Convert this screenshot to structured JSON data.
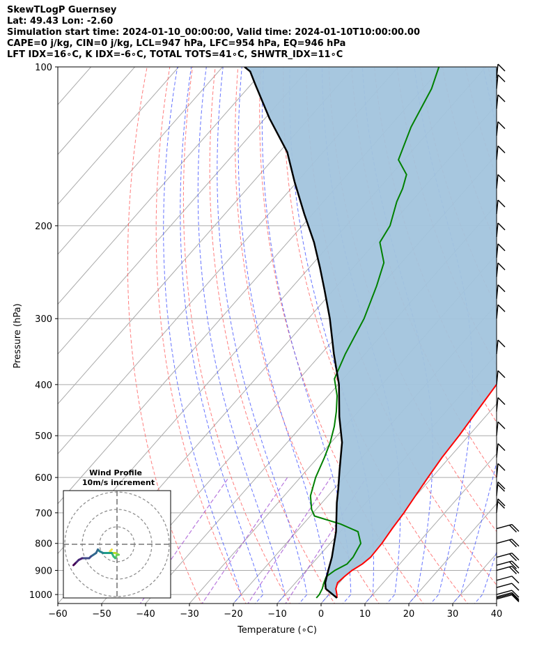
{
  "header": {
    "title": "SkewTLogP Guernsey",
    "location": "Lat: 49.43   Lon: -2.60",
    "times": "Simulation start time: 2024-01-10_00:00:00, Valid time: 2024-01-10T10:00:00.00",
    "indices_1": "CAPE=0 j/kg, CIN=0 j/kg, LCL=947 hPa, LFC=954 hPa, EQ=946 hPa",
    "indices_2": "LFT IDX=16∘C, K IDX=-6∘C, TOTAL TOTS=41∘C, SHWTR_IDX=11∘C"
  },
  "chart_data": {
    "type": "line",
    "subtype": "skew-t log-p",
    "xlabel": "Temperature (∘C)",
    "ylabel": "Pressure (hPa)",
    "xlim": [
      -60,
      40
    ],
    "ylim": [
      1040,
      100
    ],
    "yscale": "log",
    "x_ticks": [
      -60,
      -50,
      -40,
      -30,
      -20,
      -10,
      0,
      10,
      20,
      30,
      40
    ],
    "x_tick_labels": [
      "−60",
      "−50",
      "−40",
      "−30",
      "−20",
      "−10",
      "0",
      "10",
      "20",
      "30",
      "40"
    ],
    "y_ticks": [
      1000,
      900,
      800,
      700,
      600,
      500,
      400,
      300,
      200,
      100
    ],
    "y_tick_labels": [
      "1000",
      "900",
      "800",
      "700",
      "600",
      "500",
      "400",
      "300",
      "200",
      "100"
    ],
    "grid": true,
    "colors": {
      "temperature": "#ff0000",
      "dewpoint": "#008000",
      "parcel": "#000000",
      "cape_fill": "#a2c4dd",
      "dry_adiabats": "#ff6666",
      "moist_adiabats": "#4a5bff",
      "mixing_ratio": "#9a3fcf",
      "isotherms": "#aaaaaa"
    },
    "series": [
      {
        "key": "temperature",
        "points": [
          [
            2.5,
            1015
          ],
          [
            1.8,
            1000
          ],
          [
            0.4,
            975
          ],
          [
            -0.4,
            950
          ],
          [
            -0.1,
            925
          ],
          [
            0.4,
            900
          ],
          [
            1.5,
            875
          ],
          [
            2.0,
            850
          ],
          [
            1.8,
            800
          ],
          [
            1.2,
            750
          ],
          [
            0.7,
            700
          ],
          [
            -0.1,
            650
          ],
          [
            -0.9,
            600
          ],
          [
            -1.7,
            550
          ],
          [
            -2.2,
            500
          ],
          [
            -3.0,
            450
          ],
          [
            -3.9,
            400
          ],
          [
            -4.7,
            350
          ],
          [
            -7.4,
            300
          ],
          [
            -10.6,
            265
          ],
          [
            -15.3,
            240
          ],
          [
            -20.2,
            215
          ],
          [
            -24.7,
            195
          ],
          [
            -30.7,
            175
          ],
          [
            -35.4,
            160
          ],
          [
            -42.9,
            140
          ],
          [
            -50.0,
            120
          ],
          [
            -56.4,
            100
          ]
        ]
      },
      {
        "key": "dewpoint",
        "points": [
          [
            -2.2,
            1015
          ],
          [
            -2.2,
            1000
          ],
          [
            -2.7,
            975
          ],
          [
            -3.5,
            950
          ],
          [
            -4.2,
            925
          ],
          [
            -3.5,
            900
          ],
          [
            -2.0,
            875
          ],
          [
            -2.0,
            850
          ],
          [
            -3.0,
            800
          ],
          [
            -6.0,
            760
          ],
          [
            -11.5,
            735
          ],
          [
            -19.0,
            710
          ],
          [
            -21.0,
            690
          ],
          [
            -24.0,
            650
          ],
          [
            -26.5,
            600
          ],
          [
            -28.5,
            550
          ],
          [
            -30.2,
            515
          ],
          [
            -32.5,
            480
          ],
          [
            -35.0,
            450
          ],
          [
            -38.0,
            420
          ],
          [
            -42.0,
            390
          ],
          [
            -44.5,
            350
          ],
          [
            -47.3,
            300
          ],
          [
            -51.0,
            260
          ],
          [
            -54.0,
            235
          ],
          [
            -59.0,
            215
          ],
          [
            -60.0,
            200
          ],
          [
            -63.3,
            180
          ],
          [
            -64.6,
            170
          ],
          [
            -66.5,
            160
          ],
          [
            -71.3,
            150
          ],
          [
            -75.0,
            130
          ],
          [
            -78.0,
            110
          ],
          [
            -80.7,
            100
          ]
        ]
      },
      {
        "key": "parcel",
        "points": [
          [
            2.5,
            1015
          ],
          [
            -1.9,
            975
          ],
          [
            -3.2,
            950
          ],
          [
            -5.0,
            900
          ],
          [
            -6.8,
            850
          ],
          [
            -11.0,
            760
          ],
          [
            -16.6,
            670
          ],
          [
            -19.1,
            630
          ],
          [
            -22.6,
            580
          ],
          [
            -27.5,
            515
          ],
          [
            -33.3,
            460
          ],
          [
            -39.8,
            400
          ],
          [
            -47.1,
            350
          ],
          [
            -55.1,
            300
          ],
          [
            -62.0,
            265
          ],
          [
            -67.6,
            240
          ],
          [
            -74.0,
            215
          ],
          [
            -81.9,
            190
          ],
          [
            -90.6,
            165
          ],
          [
            -98.2,
            145
          ],
          [
            -109.1,
            125
          ],
          [
            -119.0,
            108
          ],
          [
            -122.8,
            102
          ],
          [
            -125.0,
            100
          ]
        ]
      }
    ],
    "wind_barbs_pressures": [
      1020,
      1015,
      1010,
      1000,
      970,
      940,
      900,
      880,
      850,
      800,
      750,
      700,
      650,
      600,
      550,
      500,
      450,
      400,
      350,
      300,
      275,
      250,
      230,
      210,
      190,
      170,
      150,
      135,
      120,
      110,
      105
    ],
    "hodograph": {
      "title": "Wind Profile",
      "subtitle": "10m/s increment",
      "rings_ms": [
        10,
        20,
        30
      ],
      "trace_uv": [
        [
          -3,
          -3
        ],
        [
          -4,
          -4
        ],
        [
          -3,
          -5
        ],
        [
          -1,
          -5
        ],
        [
          1,
          -6
        ],
        [
          0,
          -6
        ],
        [
          -1,
          -8
        ],
        [
          -2,
          -7
        ],
        [
          -3,
          -5
        ],
        [
          -5,
          -5
        ],
        [
          -8,
          -5
        ],
        [
          -10,
          -4
        ],
        [
          -11,
          -3
        ],
        [
          -12,
          -5
        ],
        [
          -15,
          -7
        ],
        [
          -16,
          -8
        ],
        [
          -20,
          -8
        ],
        [
          -22,
          -9
        ],
        [
          -24,
          -11
        ],
        [
          -25,
          -12
        ]
      ]
    }
  }
}
